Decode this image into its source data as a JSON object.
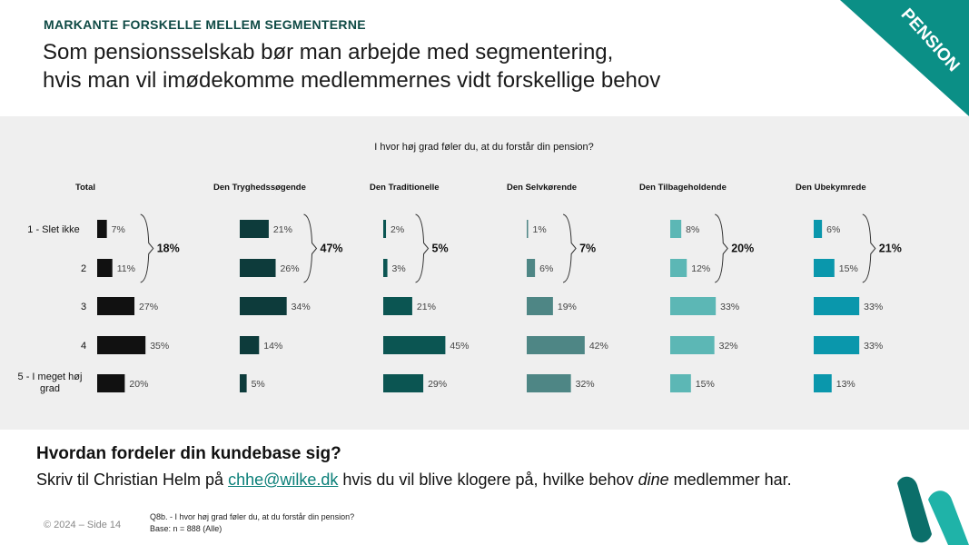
{
  "header": {
    "kicker": "MARKANTE FORSKELLE MELLEM SEGMENTERNE",
    "title_line1": "Som pensionsselskab bør man arbejde med segmentering,",
    "title_line2": "hvis man vil imødekomme medlemmernes vidt forskellige behov",
    "corner_label": "PENSION",
    "corner_color": "#0b8f86"
  },
  "chart_data": {
    "type": "bar",
    "orientation": "horizontal",
    "title": "I hvor høj grad føler du, at du forstår din pension?",
    "categories": [
      "1 - Slet ikke",
      "2",
      "3",
      "4",
      "5 - I meget høj grad"
    ],
    "value_suffix": "%",
    "series": [
      {
        "name": "Total",
        "values": [
          7,
          11,
          27,
          35,
          20
        ],
        "bracket_label": "18%",
        "color": "#111111"
      },
      {
        "name": "Den Tryghedssøgende",
        "values": [
          21,
          26,
          34,
          14,
          5
        ],
        "bracket_label": "47%",
        "color": "#0d3b3b"
      },
      {
        "name": "Den Traditionelle",
        "values": [
          2,
          3,
          21,
          45,
          29
        ],
        "bracket_label": "5%",
        "color": "#0b5552"
      },
      {
        "name": "Den Selvkørende",
        "values": [
          1,
          6,
          19,
          42,
          32
        ],
        "bracket_label": "7%",
        "color": "#4e8685"
      },
      {
        "name": "Den Tilbageholdende",
        "values": [
          8,
          12,
          33,
          32,
          15
        ],
        "bracket_label": "20%",
        "color": "#5cb7b5"
      },
      {
        "name": "Den Ubekymrede",
        "values": [
          6,
          15,
          33,
          33,
          13
        ],
        "bracket_label": "21%",
        "color": "#0a97ac"
      }
    ],
    "xlim": [
      0,
      45
    ],
    "grid": false,
    "legend": "none"
  },
  "cta": {
    "heading": "Hvordan fordeler din kundebase sig?",
    "body_before": "Skriv til Christian Helm på ",
    "email": "chhe@wilke.dk",
    "body_middle": " hvis du  vil blive klogere på, hvilke behov ",
    "body_italic": "dine",
    "body_after": " medlemmer har."
  },
  "footer": {
    "copyright": "© 2024 – Side 14",
    "note_line1": "Q8b. - I hvor høj grad føler du, at du forstår din pension?",
    "note_line2": "Base: n = 888 (Alle)"
  },
  "logo": {
    "color_dark": "#0b6f6a",
    "color_light": "#1fb3a8"
  }
}
